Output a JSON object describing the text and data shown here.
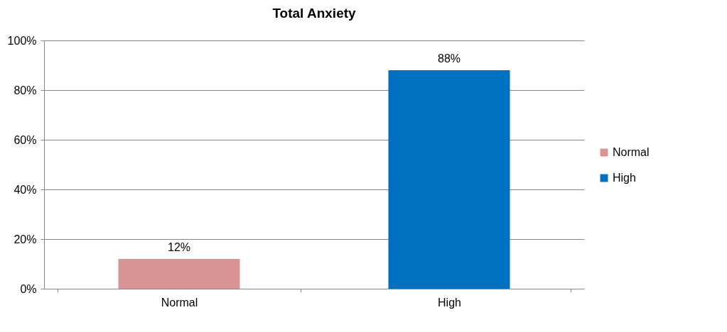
{
  "chart_data": {
    "type": "bar",
    "title": "Total Anxiety",
    "categories": [
      "Normal",
      "High"
    ],
    "stacked": true,
    "series": [
      {
        "name": "Normal",
        "color": "#d99594",
        "values": [
          12,
          null
        ],
        "value_labels": [
          "12%",
          null
        ]
      },
      {
        "name": "High",
        "color": "#0070c0",
        "values": [
          null,
          88
        ],
        "value_labels": [
          null,
          "88%"
        ]
      }
    ],
    "ylim": [
      0,
      100
    ],
    "yticks": [
      {
        "value": 0,
        "label": "0%"
      },
      {
        "value": 20,
        "label": "20%"
      },
      {
        "value": 40,
        "label": "40%"
      },
      {
        "value": 60,
        "label": "60%"
      },
      {
        "value": 80,
        "label": "80%"
      },
      {
        "value": 100,
        "label": "100%"
      }
    ],
    "grid": "y",
    "legend": "right"
  }
}
